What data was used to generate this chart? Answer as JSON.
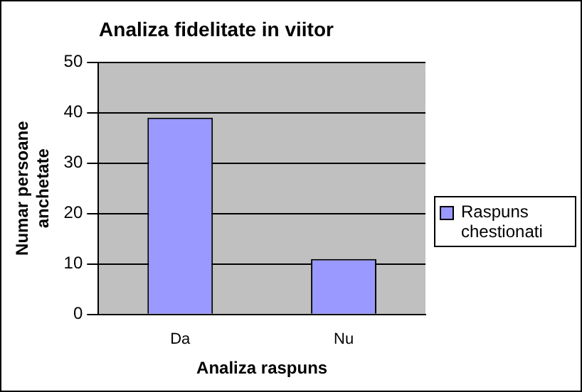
{
  "chart_data": {
    "type": "bar",
    "title": "Analiza fidelitate in viitor",
    "xlabel": "Analiza raspuns",
    "ylabel": "Numar persoane anchetate",
    "categories": [
      "Da",
      "Nu"
    ],
    "series": [
      {
        "name": "Raspuns chestionati",
        "color": "#9999ff",
        "values": [
          39,
          11
        ]
      }
    ],
    "ylim": [
      0,
      50
    ],
    "yticks": [
      0,
      10,
      20,
      30,
      40,
      50
    ],
    "grid": "y",
    "legend": "right"
  }
}
